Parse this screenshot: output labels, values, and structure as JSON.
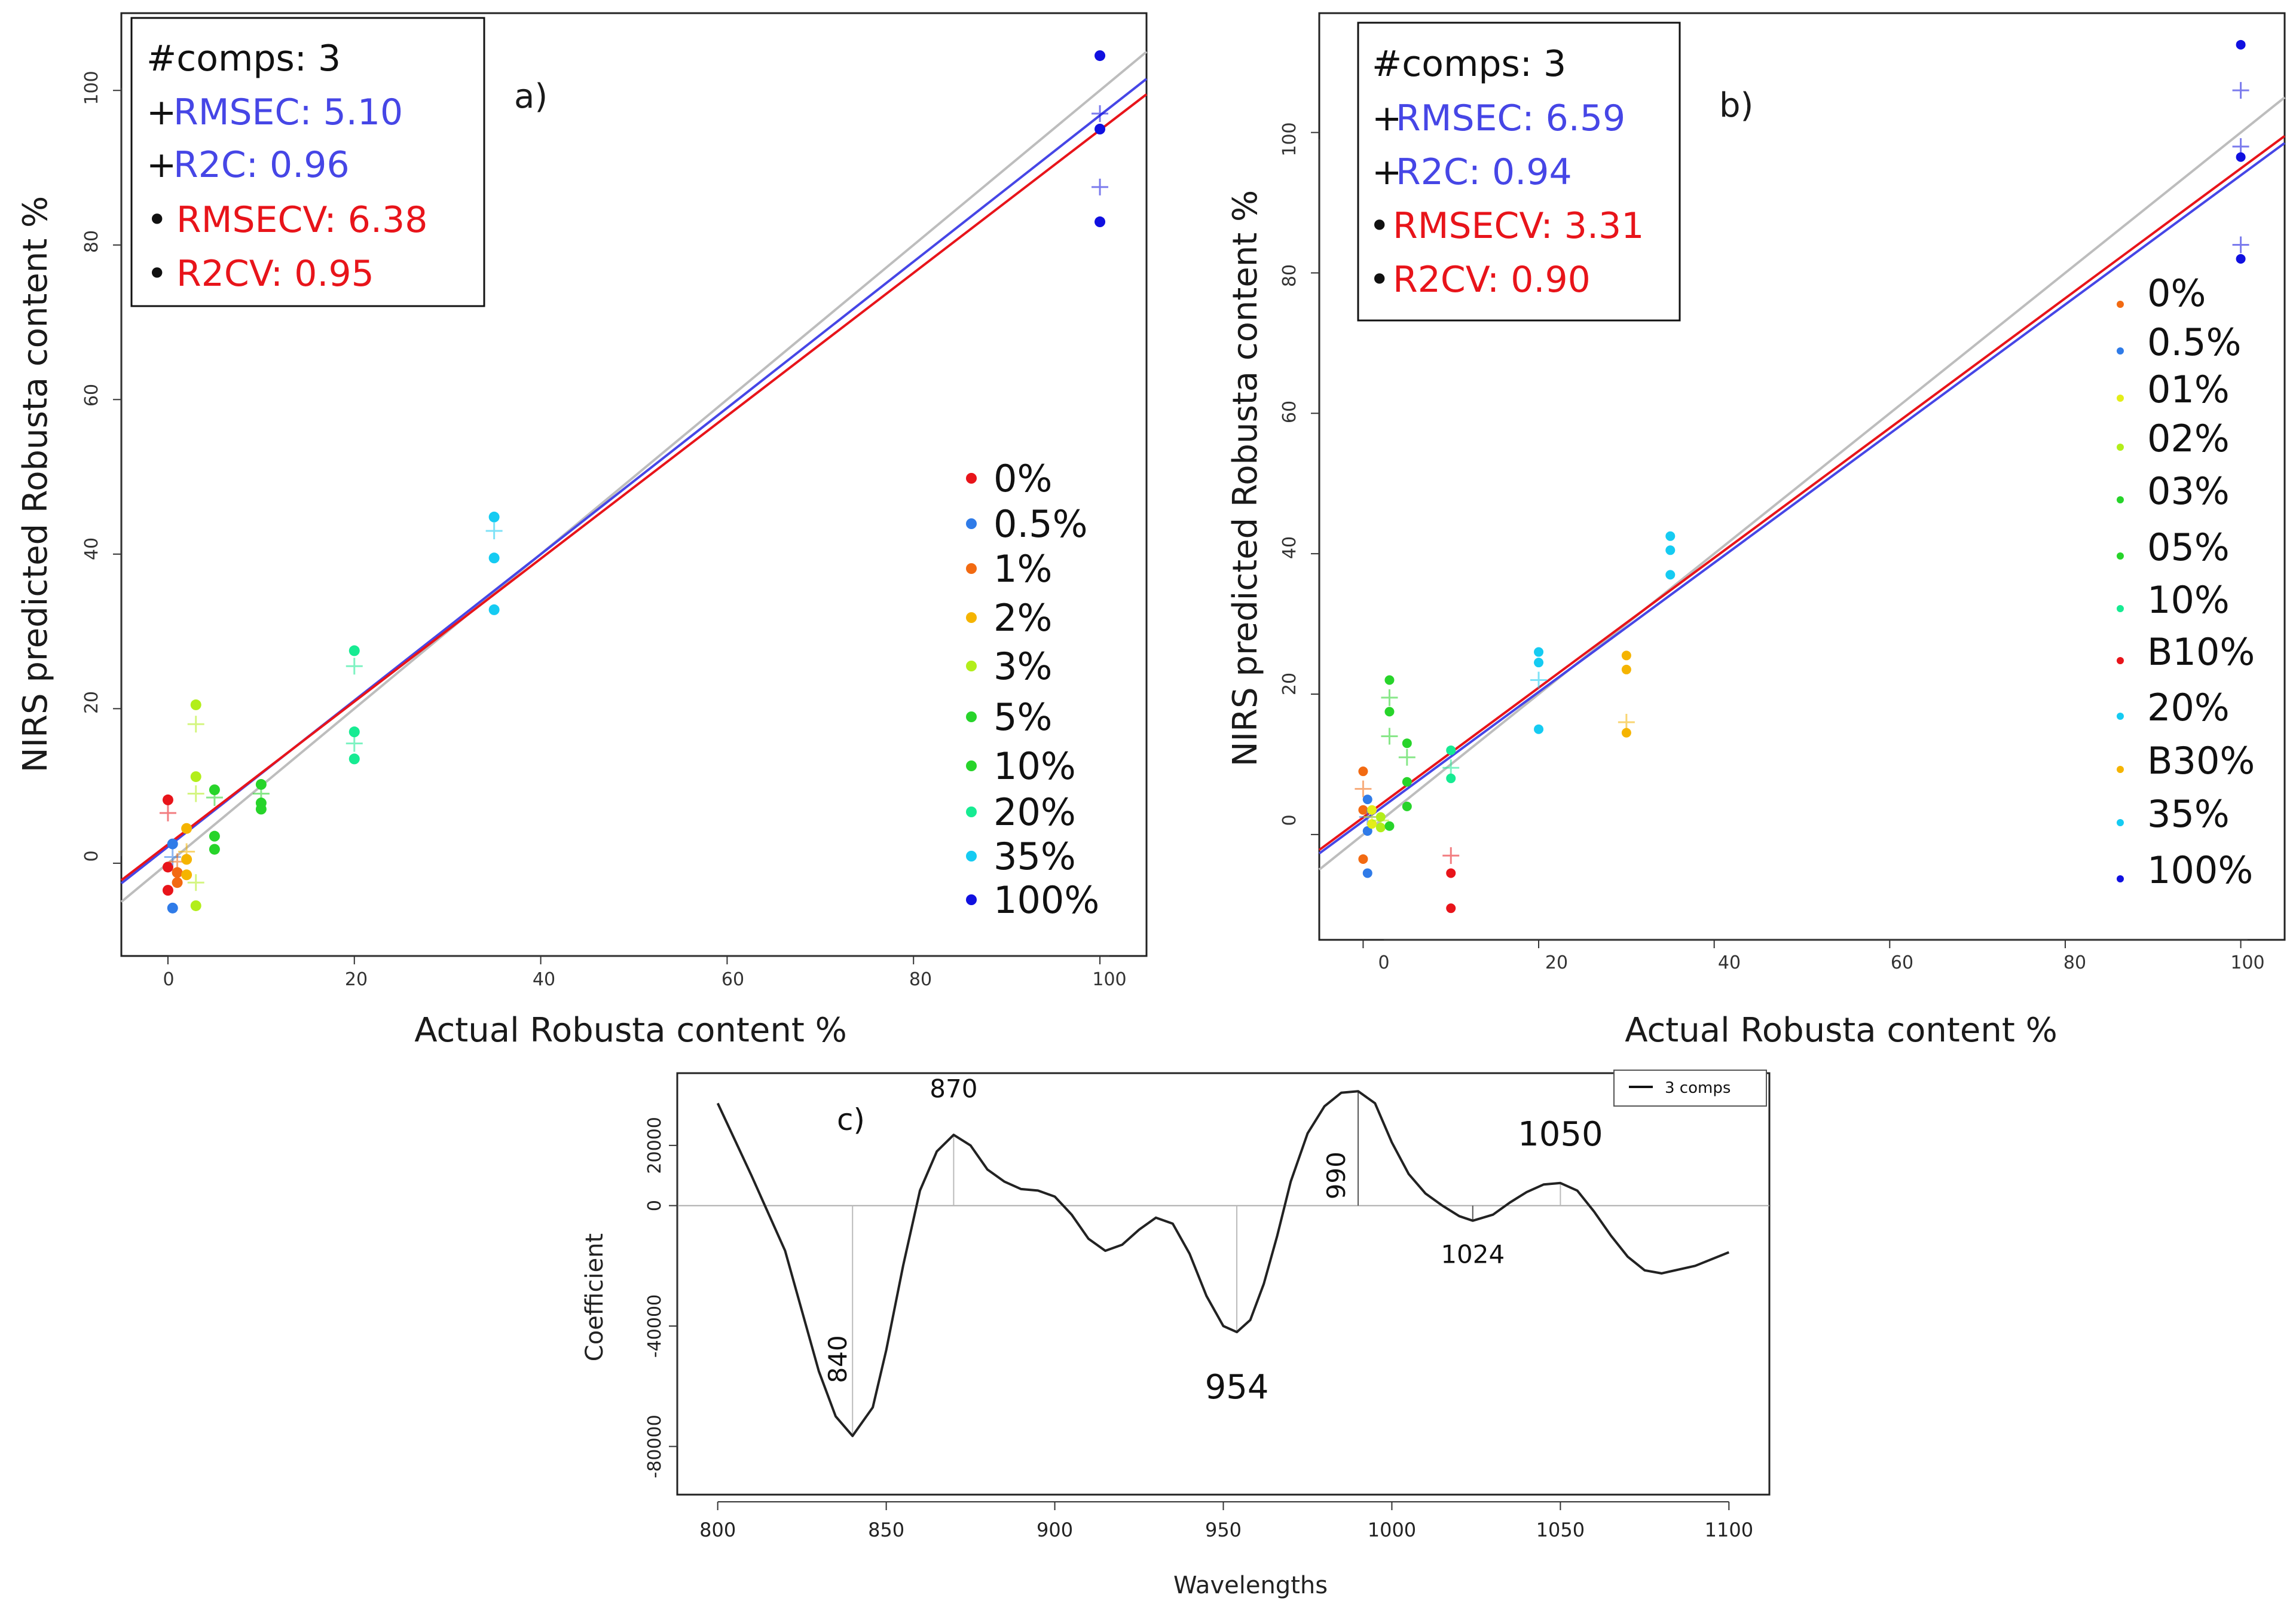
{
  "colors": {
    "black": "#111111",
    "gray": "#bdbdbd",
    "red": "#e8141a",
    "blue": "#4646e6",
    "darkblue": "#1010e0",
    "orange": "#f26a12",
    "amber": "#f5b400",
    "yellowgreen": "#b2ee1a",
    "green": "#27d42a",
    "teal": "#16eb92",
    "cyan": "#15cbf2",
    "bluedot": "#2f7be8",
    "yellow": "#e4ee18"
  },
  "chart_data": [
    {
      "id": "a",
      "type": "scatter",
      "panel_label": "a)",
      "xlabel": "Actual Robusta content %",
      "ylabel": "NIRS predicted Robusta content %",
      "xlim": [
        -5,
        105
      ],
      "ylim": [
        -12,
        110
      ],
      "xticks": [
        "0",
        "20",
        "40",
        "60",
        "80",
        "100"
      ],
      "yticks": [
        "0",
        "20",
        "40",
        "60",
        "80",
        "100"
      ],
      "stats": {
        "comps": "#comps: 3",
        "cal_symbol": "+",
        "rmsec": "RMSEC: 5.10",
        "r2c": "R2C: 0.96",
        "cv_symbol": "•",
        "rmsecv": "RMSECV: 6.38",
        "r2cv": "R2CV: 0.95"
      },
      "legend": [
        "0%",
        "0.5%",
        "1%",
        "2%",
        "3%",
        "5%",
        "10%",
        "20%",
        "35%",
        "100%"
      ],
      "legend_colors": [
        "red",
        "bluedot",
        "orange",
        "amber",
        "yellowgreen",
        "green",
        "green",
        "teal",
        "cyan",
        "darkblue"
      ],
      "lines": [
        {
          "name": "target",
          "color": "gray",
          "x": [
            -5,
            105
          ],
          "y": [
            -5,
            105
          ]
        },
        {
          "name": "calibration",
          "color": "blue",
          "x": [
            -5,
            105
          ],
          "y": [
            -2.6,
            101.5
          ]
        },
        {
          "name": "cross-validation",
          "color": "red",
          "x": [
            -5,
            105
          ],
          "y": [
            -2.2,
            99.5
          ]
        }
      ],
      "points": [
        {
          "x": 0,
          "y": 8.2,
          "color": "red",
          "m": "dot"
        },
        {
          "x": 0,
          "y": -0.5,
          "color": "red",
          "m": "dot"
        },
        {
          "x": 0,
          "y": -3.5,
          "color": "red",
          "m": "dot"
        },
        {
          "x": 0,
          "y": 6.5,
          "color": "red",
          "m": "plus"
        },
        {
          "x": 0.5,
          "y": 2.5,
          "color": "bluedot",
          "m": "dot"
        },
        {
          "x": 0.5,
          "y": -5.8,
          "color": "bluedot",
          "m": "dot"
        },
        {
          "x": 0.5,
          "y": 0.8,
          "color": "bluedot",
          "m": "plus"
        },
        {
          "x": 1,
          "y": -1.2,
          "color": "orange",
          "m": "dot"
        },
        {
          "x": 1,
          "y": -2.5,
          "color": "orange",
          "m": "dot"
        },
        {
          "x": 1,
          "y": 0.2,
          "color": "orange",
          "m": "plus"
        },
        {
          "x": 2,
          "y": 4.5,
          "color": "amber",
          "m": "dot"
        },
        {
          "x": 2,
          "y": 0.5,
          "color": "amber",
          "m": "dot"
        },
        {
          "x": 2,
          "y": -1.5,
          "color": "amber",
          "m": "dot"
        },
        {
          "x": 2,
          "y": 1.5,
          "color": "amber",
          "m": "plus"
        },
        {
          "x": 3,
          "y": 20.5,
          "color": "yellowgreen",
          "m": "dot"
        },
        {
          "x": 3,
          "y": 11.2,
          "color": "yellowgreen",
          "m": "dot"
        },
        {
          "x": 3,
          "y": -5.5,
          "color": "yellowgreen",
          "m": "dot"
        },
        {
          "x": 3,
          "y": 18,
          "color": "yellowgreen",
          "m": "plus"
        },
        {
          "x": 3,
          "y": 9,
          "color": "yellowgreen",
          "m": "plus"
        },
        {
          "x": 3,
          "y": -2.5,
          "color": "yellowgreen",
          "m": "plus"
        },
        {
          "x": 5,
          "y": 9.5,
          "color": "green",
          "m": "dot"
        },
        {
          "x": 5,
          "y": 3.5,
          "color": "green",
          "m": "dot"
        },
        {
          "x": 5,
          "y": 1.8,
          "color": "green",
          "m": "dot"
        },
        {
          "x": 5,
          "y": 8.5,
          "color": "green",
          "m": "plus"
        },
        {
          "x": 10,
          "y": 10.2,
          "color": "green",
          "m": "dot"
        },
        {
          "x": 10,
          "y": 7.8,
          "color": "green",
          "m": "dot"
        },
        {
          "x": 10,
          "y": 7,
          "color": "green",
          "m": "dot"
        },
        {
          "x": 10,
          "y": 9,
          "color": "green",
          "m": "plus"
        },
        {
          "x": 20,
          "y": 27.5,
          "color": "teal",
          "m": "dot"
        },
        {
          "x": 20,
          "y": 17,
          "color": "teal",
          "m": "dot"
        },
        {
          "x": 20,
          "y": 13.5,
          "color": "teal",
          "m": "dot"
        },
        {
          "x": 20,
          "y": 25.5,
          "color": "teal",
          "m": "plus"
        },
        {
          "x": 20,
          "y": 15.5,
          "color": "teal",
          "m": "plus"
        },
        {
          "x": 35,
          "y": 44.8,
          "color": "cyan",
          "m": "dot"
        },
        {
          "x": 35,
          "y": 39.5,
          "color": "cyan",
          "m": "dot"
        },
        {
          "x": 35,
          "y": 32.8,
          "color": "cyan",
          "m": "dot"
        },
        {
          "x": 35,
          "y": 43,
          "color": "cyan",
          "m": "plus"
        },
        {
          "x": 100,
          "y": 104.5,
          "color": "darkblue",
          "m": "dot"
        },
        {
          "x": 100,
          "y": 95,
          "color": "darkblue",
          "m": "dot"
        },
        {
          "x": 100,
          "y": 83,
          "color": "darkblue",
          "m": "dot"
        },
        {
          "x": 100,
          "y": 97,
          "color": "darkblue",
          "m": "plus"
        },
        {
          "x": 100,
          "y": 87.5,
          "color": "darkblue",
          "m": "plus"
        }
      ]
    },
    {
      "id": "b",
      "type": "scatter",
      "panel_label": "b)",
      "xlabel": "Actual Robusta content %",
      "ylabel": "NIRS predicted Robusta content %",
      "xlim": [
        -5,
        105
      ],
      "ylim": [
        -15,
        117
      ],
      "xticks": [
        "0",
        "20",
        "40",
        "60",
        "80",
        "100"
      ],
      "yticks": [
        "0",
        "20",
        "40",
        "60",
        "80",
        "100"
      ],
      "stats": {
        "comps": "#comps: 3",
        "cal_symbol": "+",
        "rmsec": "RMSEC: 6.59",
        "r2c": "R2C: 0.94",
        "cv_symbol": "•",
        "rmsecv": "RMSECV: 3.31",
        "r2cv": "R2CV: 0.90"
      },
      "legend": [
        "0%",
        "0.5%",
        "01%",
        "02%",
        "03%",
        "05%",
        "10%",
        "B10%",
        "20%",
        "B30%",
        "35%",
        "100%"
      ],
      "legend_colors": [
        "orange",
        "bluedot",
        "yellow",
        "yellowgreen",
        "green",
        "green",
        "teal",
        "red",
        "cyan",
        "amber",
        "cyan",
        "darkblue"
      ],
      "lines": [
        {
          "name": "target",
          "color": "gray",
          "x": [
            -5,
            105
          ],
          "y": [
            -5,
            105
          ]
        },
        {
          "name": "calibration",
          "color": "blue",
          "x": [
            -5,
            105
          ],
          "y": [
            -2.7,
            98.5
          ]
        },
        {
          "name": "cross-validation",
          "color": "red",
          "x": [
            -5,
            105
          ],
          "y": [
            -2.2,
            99.5
          ]
        }
      ],
      "points": [
        {
          "x": 0,
          "y": 9,
          "color": "orange",
          "m": "dot"
        },
        {
          "x": 0,
          "y": 3.5,
          "color": "orange",
          "m": "dot"
        },
        {
          "x": 0,
          "y": -3.5,
          "color": "orange",
          "m": "dot"
        },
        {
          "x": 0,
          "y": 6.5,
          "color": "orange",
          "m": "plus"
        },
        {
          "x": 0.5,
          "y": 5,
          "color": "bluedot",
          "m": "dot"
        },
        {
          "x": 0.5,
          "y": 0.5,
          "color": "bluedot",
          "m": "dot"
        },
        {
          "x": 0.5,
          "y": -5.5,
          "color": "bluedot",
          "m": "dot"
        },
        {
          "x": 0.5,
          "y": 2.5,
          "color": "bluedot",
          "m": "plus"
        },
        {
          "x": 1,
          "y": 3.5,
          "color": "yellow",
          "m": "dot"
        },
        {
          "x": 1,
          "y": 1.5,
          "color": "yellow",
          "m": "dot"
        },
        {
          "x": 1,
          "y": 2.5,
          "color": "yellow",
          "m": "plus"
        },
        {
          "x": 2,
          "y": 2.5,
          "color": "yellowgreen",
          "m": "dot"
        },
        {
          "x": 2,
          "y": 1,
          "color": "yellowgreen",
          "m": "dot"
        },
        {
          "x": 2,
          "y": 2,
          "color": "yellowgreen",
          "m": "plus"
        },
        {
          "x": 3,
          "y": 22,
          "color": "green",
          "m": "dot"
        },
        {
          "x": 3,
          "y": 17.5,
          "color": "green",
          "m": "dot"
        },
        {
          "x": 3,
          "y": 1.2,
          "color": "green",
          "m": "dot"
        },
        {
          "x": 3,
          "y": 19.5,
          "color": "green",
          "m": "plus"
        },
        {
          "x": 3,
          "y": 14,
          "color": "green",
          "m": "plus"
        },
        {
          "x": 5,
          "y": 13,
          "color": "green",
          "m": "dot"
        },
        {
          "x": 5,
          "y": 7.5,
          "color": "green",
          "m": "dot"
        },
        {
          "x": 5,
          "y": 4,
          "color": "green",
          "m": "dot"
        },
        {
          "x": 5,
          "y": 11,
          "color": "green",
          "m": "plus"
        },
        {
          "x": 10,
          "y": 12,
          "color": "teal",
          "m": "dot"
        },
        {
          "x": 10,
          "y": 8,
          "color": "teal",
          "m": "dot"
        },
        {
          "x": 10,
          "y": 9.5,
          "color": "teal",
          "m": "plus"
        },
        {
          "x": 10,
          "y": -5.5,
          "color": "red",
          "m": "dot"
        },
        {
          "x": 10,
          "y": -10.5,
          "color": "red",
          "m": "dot"
        },
        {
          "x": 10,
          "y": -3,
          "color": "red",
          "m": "plus"
        },
        {
          "x": 20,
          "y": 26,
          "color": "cyan",
          "m": "dot"
        },
        {
          "x": 20,
          "y": 24.5,
          "color": "cyan",
          "m": "dot"
        },
        {
          "x": 20,
          "y": 15,
          "color": "cyan",
          "m": "dot"
        },
        {
          "x": 20,
          "y": 22,
          "color": "cyan",
          "m": "plus"
        },
        {
          "x": 30,
          "y": 25.5,
          "color": "amber",
          "m": "dot"
        },
        {
          "x": 30,
          "y": 23.5,
          "color": "amber",
          "m": "dot"
        },
        {
          "x": 30,
          "y": 14.5,
          "color": "amber",
          "m": "dot"
        },
        {
          "x": 30,
          "y": 16,
          "color": "amber",
          "m": "plus"
        },
        {
          "x": 35,
          "y": 42.5,
          "color": "cyan",
          "m": "dot"
        },
        {
          "x": 35,
          "y": 40.5,
          "color": "cyan",
          "m": "dot"
        },
        {
          "x": 35,
          "y": 37,
          "color": "cyan",
          "m": "dot"
        },
        {
          "x": 100,
          "y": 112.5,
          "color": "darkblue",
          "m": "dot"
        },
        {
          "x": 100,
          "y": 96.5,
          "color": "darkblue",
          "m": "dot"
        },
        {
          "x": 100,
          "y": 82,
          "color": "darkblue",
          "m": "dot"
        },
        {
          "x": 100,
          "y": 106,
          "color": "darkblue",
          "m": "plus"
        },
        {
          "x": 100,
          "y": 98,
          "color": "darkblue",
          "m": "plus"
        },
        {
          "x": 100,
          "y": 84,
          "color": "darkblue",
          "m": "plus"
        }
      ]
    },
    {
      "id": "c",
      "type": "line",
      "panel_label": "c)",
      "xlabel": "Wavelengths",
      "ylabel": "Coefficient",
      "xlim": [
        788,
        1112
      ],
      "ylim": [
        -96000,
        44000
      ],
      "xticks": [
        800,
        850,
        900,
        950,
        1000,
        1050,
        1100
      ],
      "yticks": [
        {
          "v": 20000,
          "label": "20000"
        },
        {
          "v": 0,
          "label": "0"
        },
        {
          "v": -40000,
          "label": "-40000"
        },
        {
          "v": -80000,
          "label": "-80000"
        }
      ],
      "legend": [
        "3 comps"
      ],
      "series": [
        {
          "name": "3 comps",
          "x": [
            800,
            810,
            820,
            825,
            830,
            835,
            840,
            846,
            850,
            855,
            860,
            865,
            870,
            875,
            880,
            885,
            890,
            895,
            900,
            905,
            910,
            915,
            920,
            925,
            930,
            935,
            940,
            945,
            950,
            954,
            958,
            962,
            966,
            970,
            975,
            980,
            985,
            990,
            995,
            1000,
            1005,
            1010,
            1015,
            1020,
            1024,
            1030,
            1035,
            1040,
            1045,
            1050,
            1055,
            1060,
            1065,
            1070,
            1075,
            1080,
            1090,
            1100
          ],
          "y": [
            34000,
            10000,
            -15000,
            -35000,
            -55000,
            -70000,
            -76500,
            -67000,
            -48000,
            -20000,
            5000,
            18000,
            23500,
            20000,
            12000,
            8000,
            5500,
            5000,
            3000,
            -3000,
            -11000,
            -15000,
            -13000,
            -8000,
            -4000,
            -6000,
            -16000,
            -30000,
            -40000,
            -42000,
            -38000,
            -26000,
            -10000,
            8000,
            24000,
            33000,
            37500,
            38000,
            34000,
            21000,
            10500,
            4000,
            0,
            -3500,
            -5000,
            -3000,
            1000,
            4500,
            7000,
            7500,
            5000,
            -2000,
            -10000,
            -17000,
            -21500,
            -22500,
            -20000,
            -15500
          ]
        }
      ],
      "peaks": [
        {
          "x": 840,
          "y": -76500,
          "label": "840"
        },
        {
          "x": 870,
          "y": 23500,
          "label": "870"
        },
        {
          "x": 954,
          "y": -42000,
          "label": "954"
        },
        {
          "x": 990,
          "y": 38000,
          "label": "990"
        },
        {
          "x": 1024,
          "y": -5000,
          "label": "1024"
        },
        {
          "x": 1050,
          "y": 7500,
          "label": "1050"
        }
      ]
    }
  ]
}
